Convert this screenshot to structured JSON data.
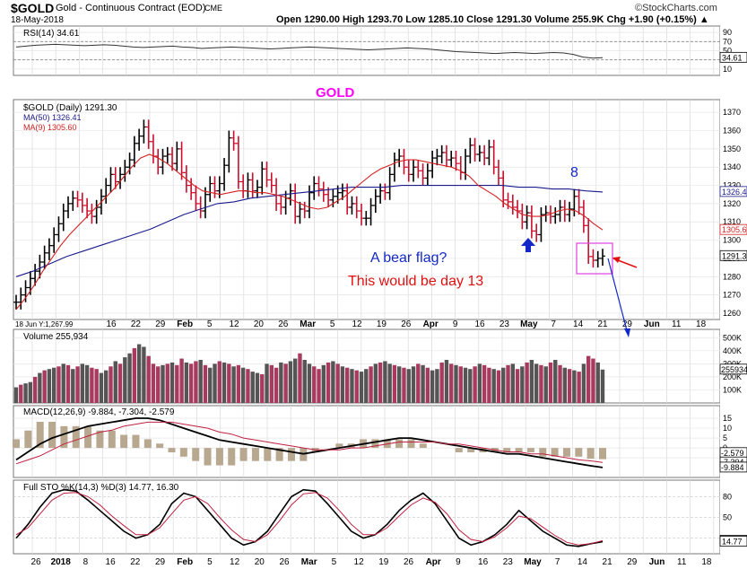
{
  "header": {
    "symbol": "$GOLD",
    "name": "Gold - Continuous Contract (EOD)",
    "exchange": "CME",
    "date": "18-May-2018",
    "watermark": "©StockCharts.com",
    "ohlc_line": "Open 1290.00  High 1293.70  Low 1285.10  Close 1291.30  Volume 255.9K  Chg +1.90 (+0.15%) ▲"
  },
  "colors": {
    "accent_title": "#ff00ff",
    "annotation_blue": "#1428c8",
    "annotation_red": "#e01010",
    "up_bar": "#000000",
    "down_bar": "#c8102e",
    "ma50": "#1a1a8c",
    "ma9": "#d42020",
    "volume_up": "#555555",
    "volume_down": "#a83a60"
  },
  "chart_data": [
    {
      "type": "line",
      "panel": "rsi",
      "title": "RSI(14) 34.61",
      "y_ticks": [
        "90",
        "70",
        "50",
        "30",
        "10"
      ],
      "last_label": "34.61",
      "ylim": [
        0,
        100
      ],
      "series": [
        {
          "values": [
            58,
            60,
            62,
            63,
            64,
            63,
            62,
            61,
            62,
            63,
            62,
            60,
            58,
            57,
            58,
            59,
            60,
            58,
            57,
            55,
            56,
            57,
            58,
            57,
            56,
            55,
            54,
            55,
            56,
            57,
            58,
            57,
            56,
            55,
            54,
            53,
            52,
            53,
            54,
            55,
            56,
            55,
            54,
            52,
            50,
            48,
            47,
            46,
            45,
            44,
            45,
            46,
            45,
            44,
            45,
            46,
            45,
            42,
            36,
            34,
            34.61
          ]
        }
      ]
    },
    {
      "type": "line",
      "panel": "price",
      "title": "$GOLD (Daily) 1291.30",
      "legend": [
        "MA(50) 1326.41",
        "MA(9) 1305.60"
      ],
      "ylim": [
        1258,
        1376
      ],
      "y_ticks": [
        "1370",
        "1360",
        "1350",
        "1340",
        "1330",
        "1320",
        "1310",
        "1300",
        "1290",
        "1280",
        "1270",
        "1260"
      ],
      "x_ticks": [
        "16",
        "22",
        "29",
        "Feb",
        "5",
        "12",
        "20",
        "26",
        "Mar",
        "5",
        "12",
        "19",
        "26",
        "Apr",
        "9",
        "16",
        "23",
        "May",
        "7",
        "14",
        "21",
        "29",
        "Jun",
        "11",
        "18"
      ],
      "last_labels": [
        "1326.41",
        "1305.60",
        "1291.30"
      ],
      "corner_label": "18 Jun Y:1,267.99",
      "annotations": [
        "GOLD",
        "A bear flag?",
        "This would be day 13",
        "8"
      ],
      "series": [
        {
          "name": "close",
          "values": [
            1266,
            1270,
            1274,
            1279,
            1283,
            1288,
            1293,
            1297,
            1303,
            1309,
            1316,
            1320,
            1323,
            1322,
            1319,
            1316,
            1313,
            1318,
            1324,
            1330,
            1336,
            1332,
            1336,
            1340,
            1344,
            1353,
            1357,
            1362,
            1354,
            1346,
            1340,
            1346,
            1347,
            1342,
            1350,
            1337,
            1330,
            1326,
            1320,
            1316,
            1325,
            1331,
            1327,
            1331,
            1341,
            1356,
            1353,
            1332,
            1327,
            1333,
            1327,
            1329,
            1339,
            1333,
            1330,
            1320,
            1318,
            1323,
            1327,
            1313,
            1317,
            1316,
            1326,
            1331,
            1328,
            1325,
            1322,
            1324,
            1326,
            1327,
            1318,
            1320,
            1316,
            1312,
            1312,
            1319,
            1324,
            1327,
            1326,
            1336,
            1344,
            1346,
            1340,
            1336,
            1340,
            1338,
            1334,
            1338,
            1345,
            1346,
            1348,
            1344,
            1345,
            1342,
            1337,
            1346,
            1352,
            1347,
            1348,
            1345,
            1351,
            1340,
            1334,
            1322,
            1321,
            1318,
            1316,
            1310,
            1315,
            1305,
            1303,
            1314,
            1315,
            1313,
            1314,
            1318,
            1314,
            1317,
            1324,
            1318,
            1308,
            1291,
            1289,
            1290,
            1291.3
          ]
        },
        {
          "name": "MA(50)",
          "values": [
            1280,
            1283,
            1287,
            1291,
            1294,
            1297,
            1300,
            1303,
            1306,
            1310,
            1314,
            1317,
            1320,
            1321,
            1323,
            1324,
            1325,
            1326,
            1327,
            1328,
            1329,
            1329,
            1329,
            1330,
            1330,
            1330,
            1330,
            1330,
            1330,
            1330,
            1329,
            1329,
            1328,
            1328,
            1327,
            1326.41
          ]
        },
        {
          "name": "MA(9)",
          "values": [
            1262,
            1268,
            1275,
            1283,
            1290,
            1297,
            1303,
            1308,
            1313,
            1318,
            1323,
            1328,
            1334,
            1340,
            1345,
            1347,
            1345,
            1342,
            1338,
            1334,
            1330,
            1327,
            1326,
            1325,
            1326,
            1327,
            1327,
            1326,
            1326,
            1325,
            1324,
            1322,
            1320,
            1318,
            1317,
            1318,
            1321,
            1324,
            1328,
            1332,
            1336,
            1339,
            1341,
            1343,
            1344,
            1344,
            1343,
            1342,
            1341,
            1340,
            1338,
            1335,
            1330,
            1327,
            1324,
            1320,
            1317,
            1314,
            1313,
            1313,
            1314,
            1316,
            1317,
            1316,
            1313,
            1309,
            1305.6
          ]
        }
      ]
    },
    {
      "type": "bar",
      "panel": "volume",
      "title": "Volume 255,934",
      "y_ticks": [
        "500K",
        "400K",
        "300K",
        "200K",
        "100K"
      ],
      "last_label": "255934",
      "ylim": [
        0,
        550
      ],
      "values": [
        120,
        140,
        150,
        160,
        200,
        230,
        250,
        260,
        270,
        280,
        300,
        290,
        260,
        280,
        300,
        290,
        270,
        260,
        230,
        250,
        280,
        320,
        300,
        350,
        380,
        420,
        450,
        430,
        360,
        300,
        280,
        290,
        300,
        310,
        290,
        340,
        310,
        300,
        320,
        330,
        290,
        270,
        300,
        320,
        310,
        300,
        280,
        290,
        270,
        260,
        240,
        230,
        220,
        300,
        290,
        270,
        310,
        300,
        320,
        340,
        380,
        330,
        300,
        280,
        260,
        290,
        310,
        320,
        300,
        280,
        270,
        260,
        250,
        240,
        260,
        280,
        300,
        310,
        320,
        300,
        290,
        280,
        270,
        260,
        280,
        300,
        290,
        270,
        250,
        260,
        310,
        330,
        300,
        290,
        280,
        270,
        260,
        280,
        300,
        290,
        270,
        260,
        250,
        270,
        290,
        300,
        260,
        280,
        310,
        330,
        300,
        290,
        280,
        310,
        330,
        290,
        270,
        260,
        250,
        240,
        300,
        360,
        340,
        310,
        255.934
      ],
      "up_down": [
        1,
        0,
        1,
        1,
        0,
        1,
        0,
        1,
        1,
        0,
        1,
        0,
        1,
        0,
        1,
        1,
        0,
        0,
        1,
        1,
        0,
        1,
        0,
        1,
        1,
        0,
        1,
        1,
        0,
        0,
        0,
        1,
        0,
        1,
        0,
        0,
        1,
        0,
        0,
        1,
        0,
        1,
        1,
        0,
        1,
        0,
        1,
        0,
        1,
        0,
        1,
        1,
        0,
        1,
        0,
        0,
        1,
        0,
        1,
        1,
        0,
        1,
        1,
        0,
        0,
        1,
        0,
        1,
        0,
        1,
        0,
        1,
        0,
        1,
        1,
        0,
        1,
        0,
        1,
        1,
        0,
        1,
        0,
        1,
        1,
        0,
        1,
        0,
        1,
        1,
        0,
        1,
        0,
        1,
        0,
        1,
        1,
        0,
        1,
        0,
        0,
        1,
        0,
        1,
        0,
        1,
        0,
        1,
        0,
        1,
        1,
        0,
        1,
        0,
        1,
        0,
        1,
        0,
        1,
        0,
        1,
        0,
        0,
        1,
        1
      ]
    },
    {
      "type": "line",
      "panel": "macd",
      "title": "MACD(12,26,9) -9.884, -7.304, -2.579",
      "y_ticks": [
        "15",
        "10",
        "5",
        "0",
        "-5"
      ],
      "last_labels": [
        "-2.579",
        "-7.304",
        "-9.884"
      ],
      "ylim": [
        -14,
        20
      ],
      "series": [
        {
          "name": "MACD",
          "values": [
            -6,
            -2,
            2,
            5,
            7,
            9,
            11,
            12,
            13,
            14,
            15,
            15,
            14,
            12,
            10,
            8,
            6,
            4,
            3,
            2,
            1,
            0,
            -1,
            -2,
            -3,
            -2,
            -1,
            0,
            1,
            2,
            3,
            4,
            5,
            5,
            4,
            3,
            2,
            1,
            0,
            -1,
            -2,
            -3,
            -3,
            -4,
            -5,
            -6,
            -7,
            -8,
            -9,
            -9.884
          ]
        },
        {
          "name": "Signal",
          "values": [
            -8,
            -6,
            -4,
            -1,
            2,
            4,
            6,
            8,
            9,
            11,
            12,
            13,
            13,
            13,
            12,
            11,
            10,
            8,
            7,
            5,
            4,
            3,
            2,
            1,
            0,
            -1,
            -1,
            -1,
            0,
            0,
            1,
            2,
            3,
            3,
            3,
            3,
            2,
            2,
            1,
            0,
            -1,
            -2,
            -2,
            -3,
            -3,
            -4,
            -5,
            -6,
            -6.5,
            -7.304
          ]
        }
      ]
    },
    {
      "type": "line",
      "panel": "stochastic",
      "title": "Full STO %K(14,3) %D(3) 14.77, 16.30",
      "y_ticks": [
        "80",
        "50",
        "20"
      ],
      "last_labels": [
        "16.30",
        "14.77"
      ],
      "ylim": [
        0,
        100
      ],
      "series": [
        {
          "name": "%K",
          "values": [
            20,
            40,
            65,
            85,
            90,
            88,
            75,
            60,
            45,
            30,
            20,
            25,
            40,
            70,
            85,
            80,
            60,
            40,
            20,
            10,
            15,
            30,
            55,
            80,
            90,
            88,
            70,
            50,
            30,
            20,
            25,
            40,
            60,
            75,
            85,
            70,
            45,
            20,
            10,
            15,
            25,
            40,
            60,
            45,
            30,
            20,
            10,
            8,
            12,
            14.77
          ]
        },
        {
          "name": "%D",
          "values": [
            25,
            35,
            55,
            75,
            85,
            86,
            80,
            68,
            52,
            38,
            25,
            25,
            35,
            55,
            75,
            80,
            70,
            50,
            32,
            18,
            15,
            25,
            45,
            68,
            84,
            86,
            78,
            60,
            40,
            25,
            25,
            35,
            52,
            68,
            78,
            72,
            55,
            32,
            18,
            15,
            22,
            35,
            52,
            48,
            36,
            24,
            14,
            10,
            12,
            16.3
          ]
        }
      ]
    }
  ],
  "bottom_axis": [
    "26",
    "2018",
    "8",
    "16",
    "22",
    "29",
    "Feb",
    "5",
    "12",
    "20",
    "26",
    "Mar",
    "5",
    "12",
    "19",
    "26",
    "Apr",
    "9",
    "16",
    "23",
    "May",
    "7",
    "14",
    "21",
    "29",
    "Jun",
    "11",
    "18"
  ]
}
